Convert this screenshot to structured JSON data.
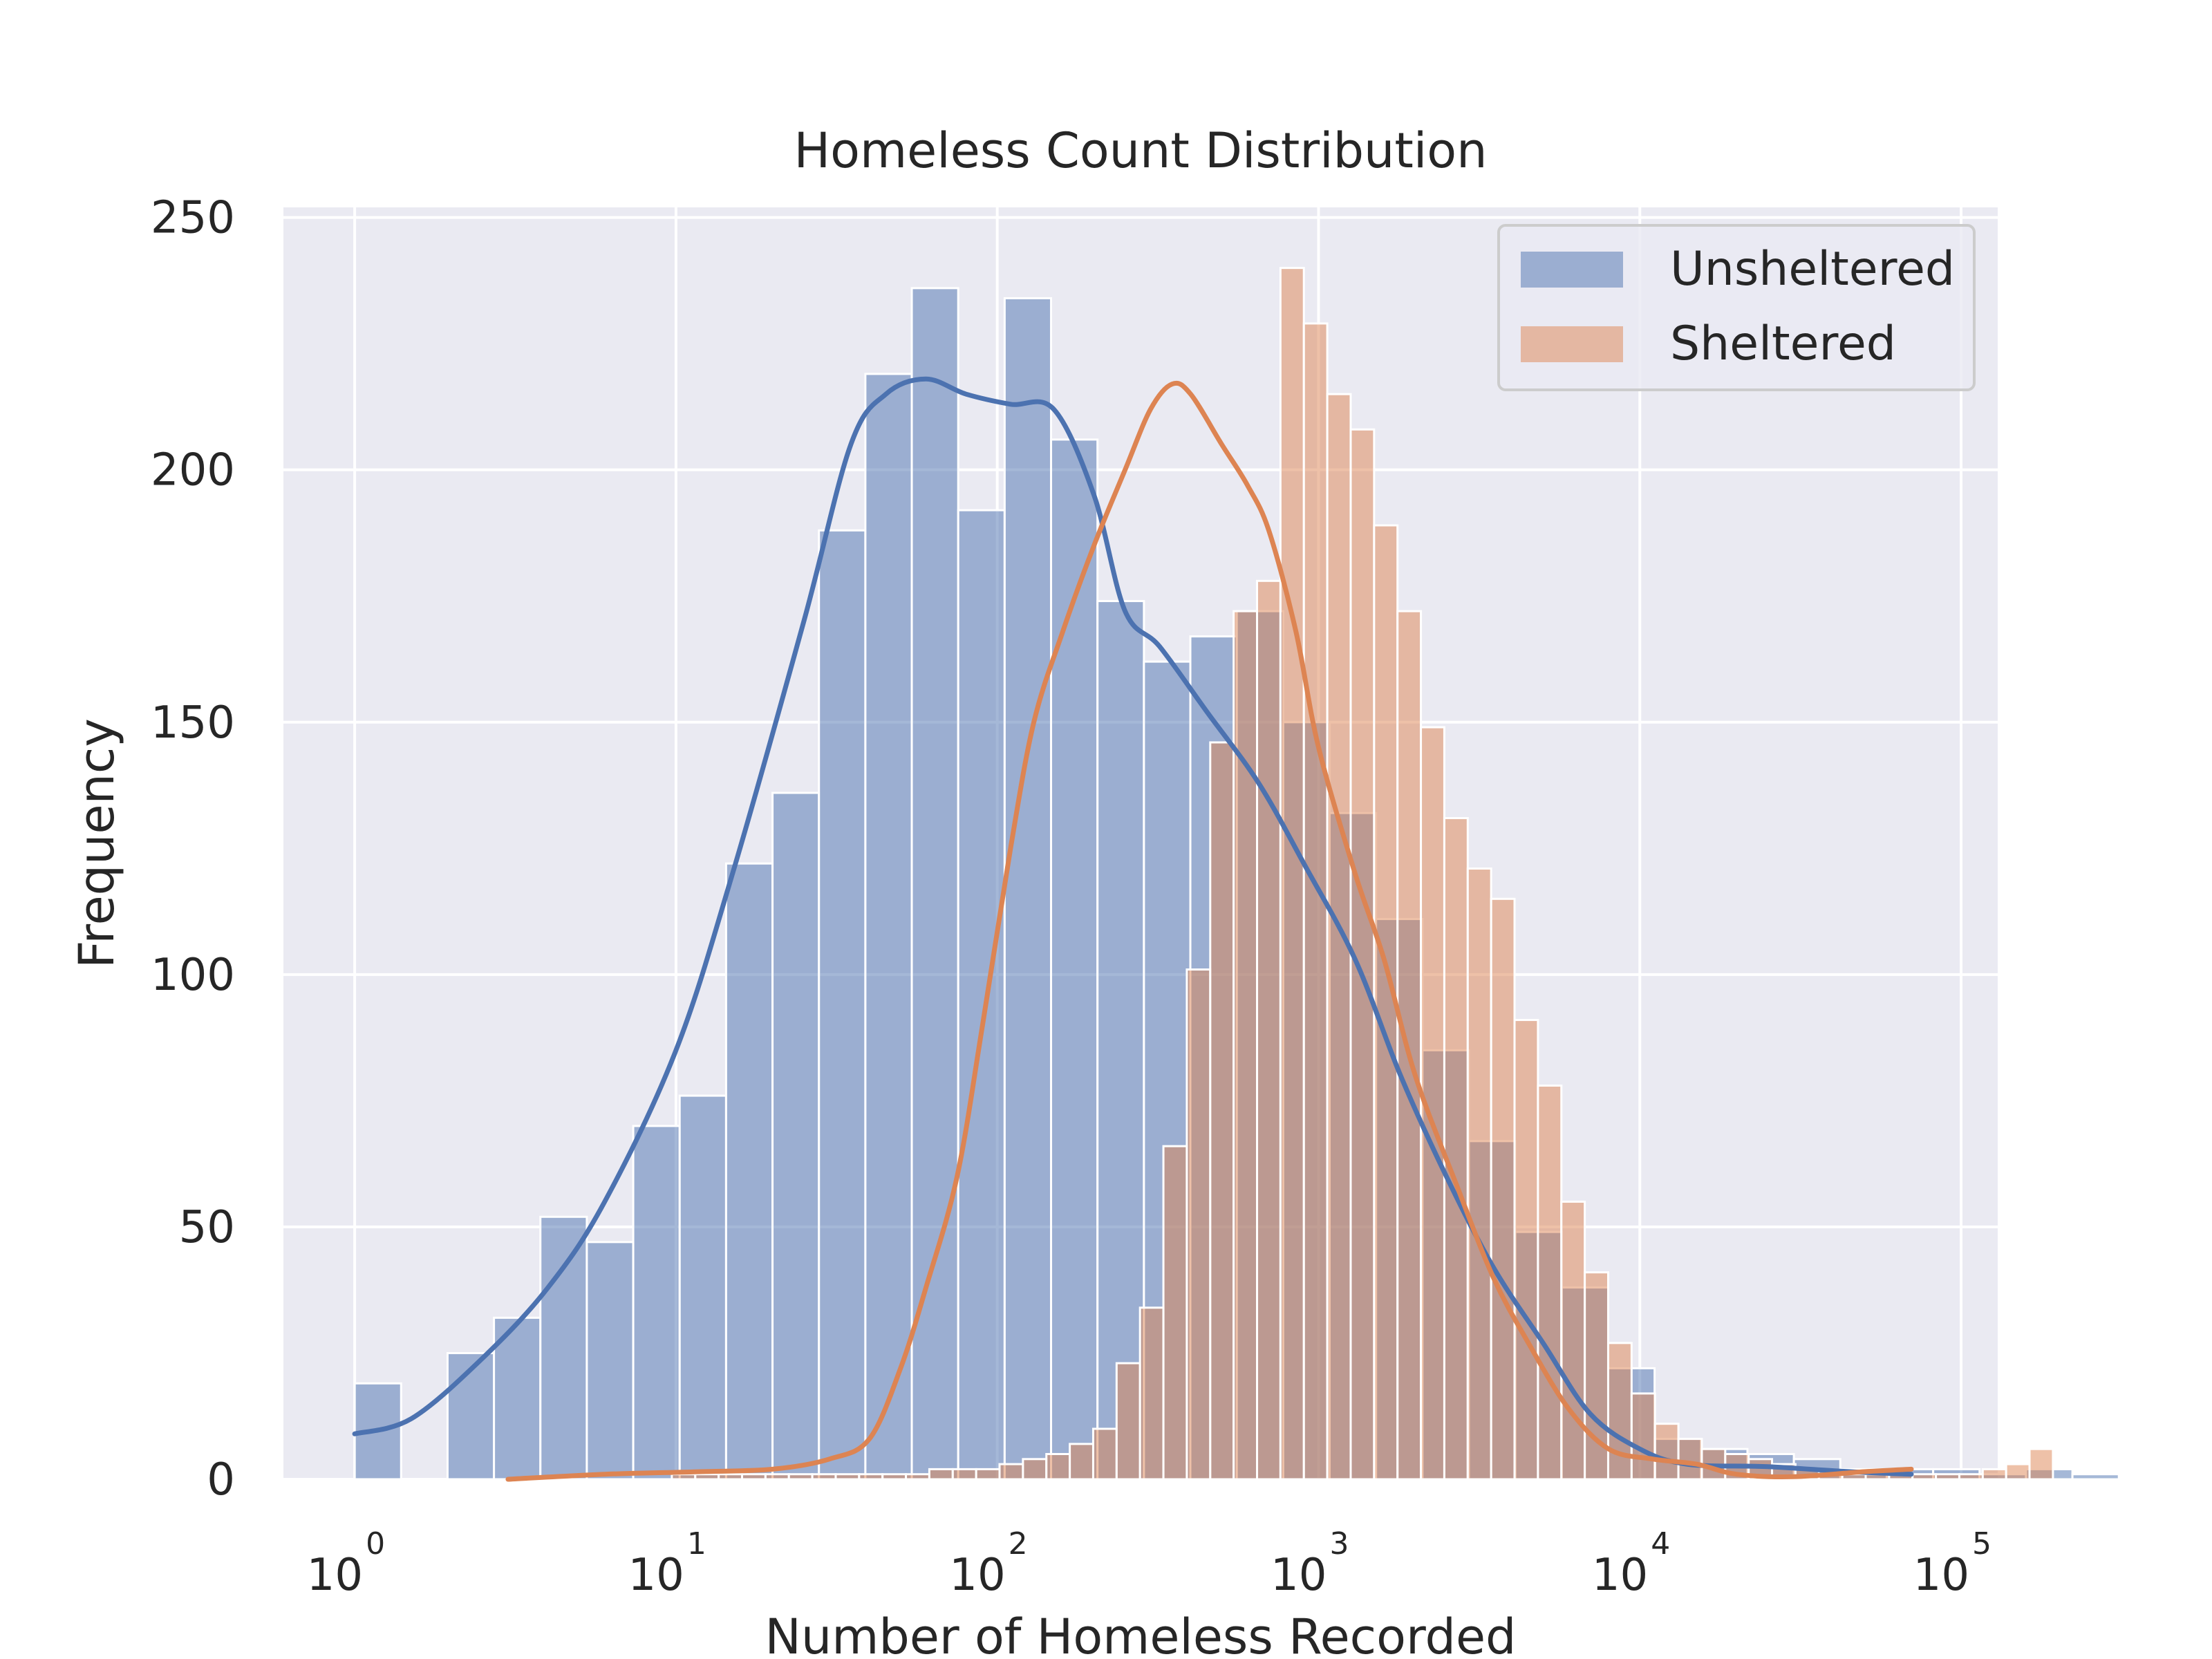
{
  "chart_data": {
    "type": "bar",
    "title": "Homeless Count Distribution",
    "xlabel": "Number of Homeless Recorded",
    "ylabel": "Frequency",
    "xscale": "log",
    "xlim": [
      0.6,
      130000
    ],
    "ylim": [
      0,
      252
    ],
    "yticks": [
      0,
      50,
      100,
      150,
      200,
      250
    ],
    "xticks": [
      {
        "value": 1,
        "base": "10",
        "exp": "0"
      },
      {
        "value": 10,
        "base": "10",
        "exp": "1"
      },
      {
        "value": 100,
        "base": "10",
        "exp": "2"
      },
      {
        "value": 1000,
        "base": "10",
        "exp": "3"
      },
      {
        "value": 10000,
        "base": "10",
        "exp": "4"
      },
      {
        "value": 100000,
        "base": "10",
        "exp": "5"
      }
    ],
    "grid": true,
    "legend_position": "top-right",
    "series": [
      {
        "name": "Unsheltered",
        "color": "#4c72b0",
        "bin_log_start": 0,
        "bin_log_width": 0.1445,
        "values": [
          19,
          0,
          25,
          32,
          52,
          47,
          70,
          76,
          122,
          136,
          188,
          219,
          236,
          192,
          234,
          206,
          174,
          162,
          167,
          172,
          150,
          132,
          111,
          85,
          67,
          49,
          38,
          22,
          8,
          6,
          5,
          4,
          2,
          2,
          2,
          1,
          2,
          1
        ],
        "kde": [
          [
            1,
            9
          ],
          [
            1.5,
            12
          ],
          [
            2.5,
            24
          ],
          [
            4,
            38
          ],
          [
            6,
            55
          ],
          [
            10,
            85
          ],
          [
            15,
            120
          ],
          [
            25,
            170
          ],
          [
            35,
            205
          ],
          [
            45,
            215
          ],
          [
            60,
            218
          ],
          [
            80,
            215
          ],
          [
            110,
            213
          ],
          [
            150,
            212
          ],
          [
            200,
            195
          ],
          [
            250,
            172
          ],
          [
            320,
            165
          ],
          [
            450,
            152
          ],
          [
            650,
            138
          ],
          [
            900,
            122
          ],
          [
            1300,
            103
          ],
          [
            1800,
            80
          ],
          [
            2500,
            60
          ],
          [
            3500,
            42
          ],
          [
            5000,
            27
          ],
          [
            7000,
            13
          ],
          [
            10000,
            6
          ],
          [
            14000,
            3
          ],
          [
            25000,
            2.5
          ],
          [
            45000,
            1.5
          ],
          [
            70000,
            1
          ]
        ]
      },
      {
        "name": "Sheltered",
        "color": "#dd8452",
        "bin_log_start": 0.4771,
        "bin_log_width": 0.07286,
        "values": [
          0,
          0,
          0,
          0,
          0,
          0,
          0,
          1,
          1,
          1,
          1,
          1,
          1,
          1,
          1,
          1,
          1,
          1,
          2,
          2,
          2,
          3,
          4,
          5,
          7,
          10,
          23,
          34,
          66,
          101,
          146,
          172,
          178,
          240,
          229,
          215,
          208,
          189,
          172,
          149,
          131,
          121,
          115,
          91,
          78,
          55,
          41,
          27,
          17,
          11,
          8,
          6,
          5,
          4,
          3,
          2,
          1,
          1,
          1,
          1,
          1,
          1,
          1,
          2,
          3,
          6
        ],
        "kde": [
          [
            3,
            0
          ],
          [
            6,
            1
          ],
          [
            12,
            1.5
          ],
          [
            20,
            2
          ],
          [
            30,
            4
          ],
          [
            40,
            8
          ],
          [
            50,
            22
          ],
          [
            60,
            38
          ],
          [
            75,
            60
          ],
          [
            90,
            90
          ],
          [
            110,
            125
          ],
          [
            130,
            150
          ],
          [
            160,
            168
          ],
          [
            200,
            185
          ],
          [
            250,
            200
          ],
          [
            300,
            212
          ],
          [
            350,
            217
          ],
          [
            400,
            215
          ],
          [
            500,
            205
          ],
          [
            600,
            197
          ],
          [
            700,
            188
          ],
          [
            850,
            168
          ],
          [
            1000,
            145
          ],
          [
            1300,
            120
          ],
          [
            1600,
            103
          ],
          [
            2000,
            80
          ],
          [
            2700,
            58
          ],
          [
            3500,
            40
          ],
          [
            4500,
            27
          ],
          [
            6000,
            14
          ],
          [
            8000,
            6
          ],
          [
            11000,
            4
          ],
          [
            15000,
            3
          ],
          [
            20000,
            1
          ],
          [
            30000,
            0.5
          ],
          [
            50000,
            1.5
          ],
          [
            70000,
            2
          ]
        ]
      }
    ]
  }
}
